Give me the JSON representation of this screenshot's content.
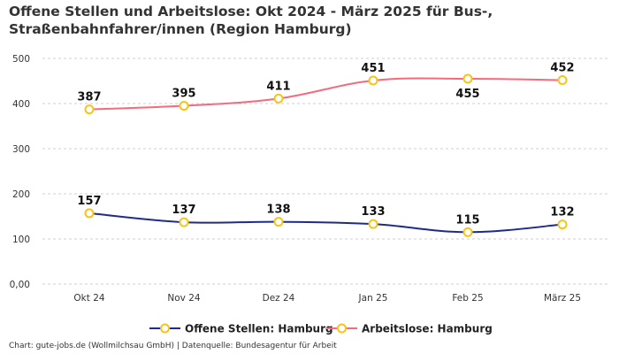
{
  "chart_data": {
    "type": "line",
    "title": "Offene Stellen und Arbeitslose: Okt 2024 - März 2025 für Bus-, Straßenbahnfahrer/innen (Region Hamburg)",
    "categories": [
      "Okt 24",
      "Nov 24",
      "Dez 24",
      "Jan 25",
      "Feb 25",
      "März 25"
    ],
    "y_ticks": [
      "0,00",
      "100",
      "200",
      "300",
      "400",
      "500"
    ],
    "y_tick_values": [
      0,
      100,
      200,
      300,
      400,
      500
    ],
    "ylim": [
      0,
      500
    ],
    "grid": true,
    "legend_position": "bottom",
    "series": [
      {
        "name": "Offene Stellen: Hamburg",
        "values": [
          157,
          137,
          138,
          133,
          115,
          132
        ],
        "labels": [
          "157",
          "137",
          "138",
          "133",
          "115",
          "132"
        ],
        "color": "#1f2a8a"
      },
      {
        "name": "Arbeitslose: Hamburg",
        "values": [
          387,
          395,
          411,
          451,
          455,
          452
        ],
        "labels": [
          "387",
          "395",
          "411",
          "451",
          "455",
          "452"
        ],
        "label_positions": [
          "above",
          "above",
          "above",
          "above",
          "below",
          "above"
        ],
        "color": "#f26b7f"
      }
    ],
    "marker_color": "#f5c518"
  },
  "footer": "Chart: gute-jobs.de (Wollmilchsau GmbH) | Datenquelle: Bundesagentur für Arbeit"
}
